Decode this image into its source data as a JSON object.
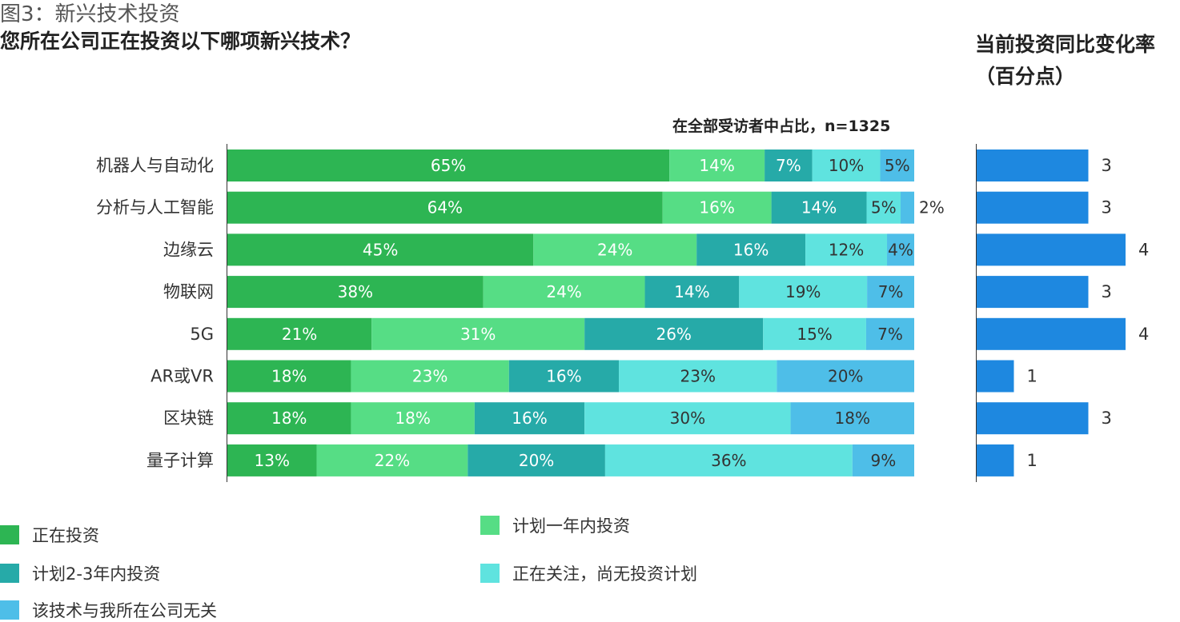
{
  "header": {
    "figure_label": "图3：新兴技术投资",
    "question": "您所在公司正在投资以下哪项新兴技术？",
    "right_title_line1": "当前投资同比变化率",
    "right_title_line2": "（百分点）",
    "respondents": "在全部受访者中占比，n=1325"
  },
  "colors": {
    "investing": "#2db553",
    "plan_1yr": "#56dd85",
    "plan_2_3yr": "#26aaa8",
    "watching": "#5fe3df",
    "irrelevant": "#4ebee8",
    "change_bar": "#1e88e0"
  },
  "legend": [
    {
      "label": "正在投资",
      "color": "#2db553"
    },
    {
      "label": "计划一年内投资",
      "color": "#56dd85"
    },
    {
      "label": "计划2-3年内投资",
      "color": "#26aaa8"
    },
    {
      "label": "正在关注，尚无投资计划",
      "color": "#5fe3df"
    },
    {
      "label": "该技术与我所在公司无关",
      "color": "#4ebee8"
    }
  ],
  "chart_data": [
    {
      "type": "bar",
      "orientation": "horizontal",
      "stacked": true,
      "categories": [
        "机器人与自动化",
        "分析与人工智能",
        "边缘云",
        "物联网",
        "5G",
        "AR或VR",
        "区块链",
        "量子计算"
      ],
      "series": [
        {
          "name": "正在投资",
          "values": [
            65,
            64,
            45,
            38,
            21,
            18,
            18,
            13
          ]
        },
        {
          "name": "计划一年内投资",
          "values": [
            14,
            16,
            24,
            24,
            31,
            23,
            18,
            22
          ]
        },
        {
          "name": "计划2-3年内投资",
          "values": [
            7,
            14,
            16,
            14,
            26,
            16,
            16,
            20
          ]
        },
        {
          "name": "正在关注，尚无投资计划",
          "values": [
            10,
            5,
            12,
            19,
            15,
            23,
            30,
            36
          ]
        },
        {
          "name": "该技术与我所在公司无关",
          "values": [
            5,
            2,
            4,
            7,
            7,
            20,
            18,
            9
          ]
        }
      ],
      "value_suffix": "%",
      "xlim": [
        0,
        100
      ]
    },
    {
      "type": "bar",
      "orientation": "horizontal",
      "title": "当前投资同比变化率（百分点）",
      "categories": [
        "机器人与自动化",
        "分析与人工智能",
        "边缘云",
        "物联网",
        "5G",
        "AR或VR",
        "区块链",
        "量子计算"
      ],
      "values": [
        3,
        3,
        4,
        3,
        4,
        1,
        3,
        1
      ],
      "xlim": [
        0,
        4
      ]
    }
  ]
}
